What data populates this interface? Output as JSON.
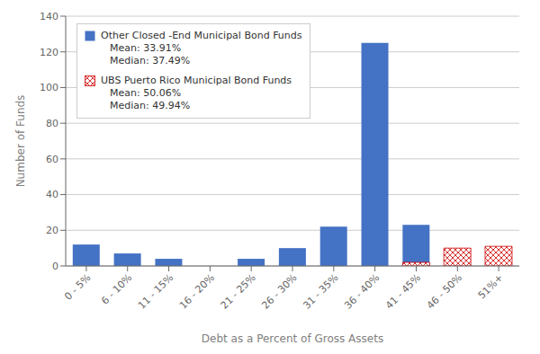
{
  "chart_data": {
    "type": "bar",
    "categories": [
      "0 - 5%",
      "6 - 10%",
      "11 - 15%",
      "16 - 20%",
      "21 - 25%",
      "26 - 30%",
      "31 - 35%",
      "36 - 40%",
      "41 - 45%",
      "46 - 50%",
      "51%+"
    ],
    "series": [
      {
        "name": "Other Closed -End Municipal Bond Funds",
        "legend_notes": [
          "Mean: 33.91%",
          "Median: 37.49%"
        ],
        "color": "#4472c4",
        "values": [
          12,
          7,
          4,
          0,
          4,
          10,
          22,
          125,
          23,
          1,
          0
        ]
      },
      {
        "name": "UBS Puerto Rico Municipal Bond Funds",
        "legend_notes": [
          "Mean: 50.06%",
          "Median: 49.94%"
        ],
        "color": "#cc0000",
        "values": [
          0,
          0,
          0,
          0,
          0,
          0,
          0,
          0,
          2,
          10,
          11
        ]
      }
    ],
    "xlabel": "Debt as a Percent of Gross Assets",
    "ylabel": "Number of Funds",
    "ylim": [
      0,
      140
    ],
    "yticks": [
      0,
      20,
      40,
      60,
      80,
      100,
      120,
      140
    ],
    "grid": true,
    "legend": "upper left"
  }
}
